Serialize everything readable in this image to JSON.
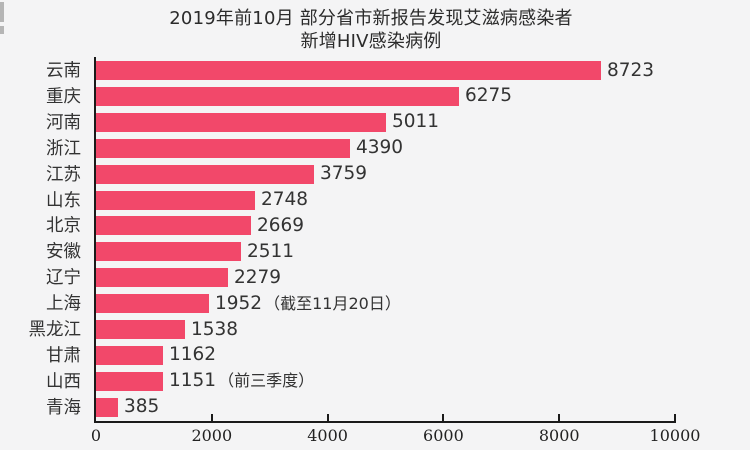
{
  "title": {
    "line1": "2019年前10月 部分省市新报告发现艾滋病感染者",
    "line2": "新增HIV感染病例"
  },
  "colors": {
    "bar": "#f2486a",
    "background": "#f4f4f5",
    "text": "#333333",
    "axis": "#1a1a1a"
  },
  "chart_data": {
    "type": "bar",
    "orientation": "horizontal",
    "title": "2019年前10月 部分省市新报告发现艾滋病感染者 新增HIV感染病例",
    "xlabel": "",
    "ylabel": "",
    "xlim": [
      0,
      10000
    ],
    "xticks": [
      0,
      2000,
      4000,
      6000,
      8000,
      10000
    ],
    "grid": false,
    "legend": null,
    "categories": [
      "云南",
      "重庆",
      "河南",
      "浙江",
      "江苏",
      "山东",
      "北京",
      "安徽",
      "辽宁",
      "上海",
      "黑龙江",
      "甘肃",
      "山西",
      "青海"
    ],
    "values": [
      8723,
      6275,
      5011,
      4390,
      3759,
      2748,
      2669,
      2511,
      2279,
      1952,
      1538,
      1162,
      1151,
      385
    ],
    "annotations": [
      {
        "category": "上海",
        "text": "（截至11月20日）"
      },
      {
        "category": "山西",
        "text": "（前三季度）"
      }
    ]
  },
  "rows": [
    {
      "label": "云南",
      "value": "8723",
      "note": ""
    },
    {
      "label": "重庆",
      "value": "6275",
      "note": ""
    },
    {
      "label": "河南",
      "value": "5011",
      "note": ""
    },
    {
      "label": "浙江",
      "value": "4390",
      "note": ""
    },
    {
      "label": "江苏",
      "value": "3759",
      "note": ""
    },
    {
      "label": "山东",
      "value": "2748",
      "note": ""
    },
    {
      "label": "北京",
      "value": "2669",
      "note": ""
    },
    {
      "label": "安徽",
      "value": "2511",
      "note": ""
    },
    {
      "label": "辽宁",
      "value": "2279",
      "note": ""
    },
    {
      "label": "上海",
      "value": "1952",
      "note": "（截至11月20日）"
    },
    {
      "label": "黑龙江",
      "value": "1538",
      "note": ""
    },
    {
      "label": "甘肃",
      "value": "1162",
      "note": ""
    },
    {
      "label": "山西",
      "value": "1151",
      "note": "（前三季度）"
    },
    {
      "label": "青海",
      "value": "385",
      "note": ""
    }
  ],
  "axis": {
    "ticks": [
      "0",
      "2000",
      "4000",
      "6000",
      "8000",
      "10000"
    ]
  }
}
